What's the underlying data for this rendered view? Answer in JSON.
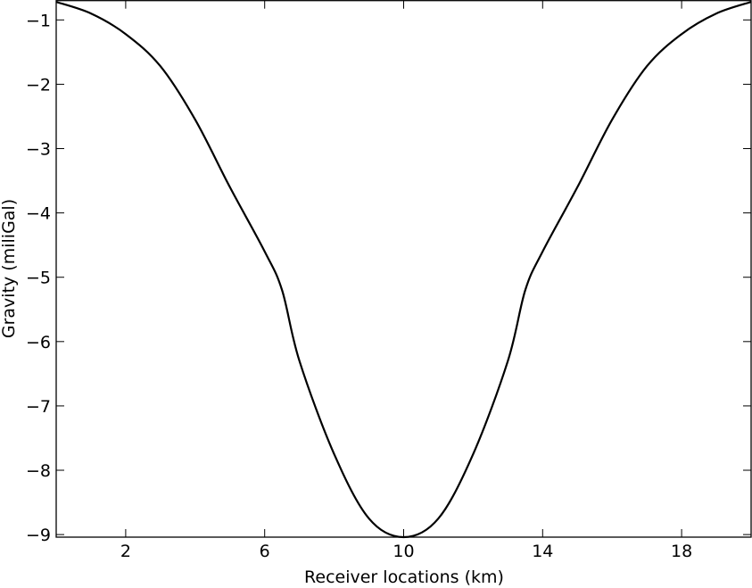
{
  "chart_data": {
    "type": "line",
    "title": "",
    "xlabel": "Receiver locations (km)",
    "ylabel": "Gravity (miliGal)",
    "xlim": [
      0,
      20
    ],
    "ylim": [
      -9.04,
      -0.7
    ],
    "x_ticks": [
      2,
      6,
      10,
      14,
      18
    ],
    "y_ticks": [
      -1,
      -2,
      -3,
      -4,
      -5,
      -6,
      -7,
      -8,
      -9
    ],
    "x_tick_labels": [
      "2",
      "6",
      "10",
      "14",
      "18"
    ],
    "y_tick_labels": [
      "−1",
      "−2",
      "−3",
      "−4",
      "−5",
      "−6",
      "−7",
      "−8",
      "−9"
    ],
    "grid": false,
    "legend": "none",
    "series": [
      {
        "color": "#000000",
        "x": [
          0,
          1,
          2,
          3,
          4,
          5,
          6,
          6.5,
          7,
          8,
          9,
          10,
          11,
          12,
          13,
          13.5,
          14,
          15,
          16,
          17,
          18,
          19,
          20
        ],
        "y": [
          -0.72,
          -0.9,
          -1.22,
          -1.72,
          -2.55,
          -3.6,
          -4.6,
          -5.2,
          -6.3,
          -7.75,
          -8.75,
          -9.04,
          -8.75,
          -7.75,
          -6.3,
          -5.2,
          -4.6,
          -3.6,
          -2.55,
          -1.72,
          -1.22,
          -0.9,
          -0.72
        ]
      }
    ]
  }
}
